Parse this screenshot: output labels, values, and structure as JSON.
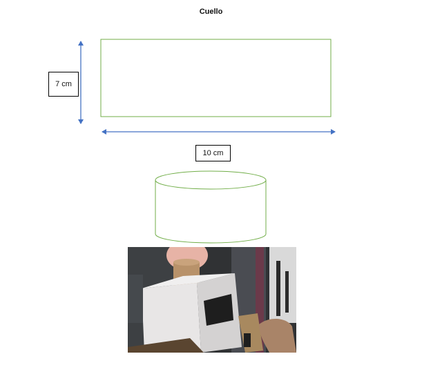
{
  "title": "Cuello",
  "dimensions": {
    "height_label": "7 cm",
    "width_label": "10 cm"
  },
  "colors": {
    "outline": "#70ad47",
    "arrow": "#4472c4",
    "text": "#111111"
  },
  "photo": {
    "subject": "cardboard-robot-photo"
  }
}
